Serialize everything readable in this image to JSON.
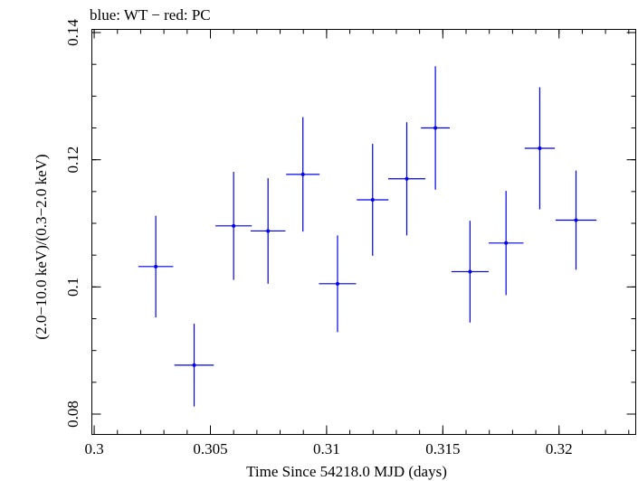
{
  "chart_data": {
    "type": "scatter",
    "title": "blue: WT − red: PC",
    "xlabel": "Time Since 54218.0 MJD (days)",
    "ylabel": "(2.0−10.0 keV)/(0.3−2.0 keV)",
    "xlim": [
      0.2999,
      0.3233
    ],
    "ylim": [
      0.0768,
      0.1405
    ],
    "x_ticks": [
      0.3,
      0.305,
      0.31,
      0.315,
      0.32
    ],
    "x_tick_labels": [
      "0.3",
      "0.305",
      "0.31",
      "0.315",
      "0.32"
    ],
    "y_ticks": [
      0.08,
      0.1,
      0.12,
      0.14
    ],
    "y_tick_labels": [
      "0.08",
      "0.1",
      "0.12",
      "0.14"
    ],
    "x_minor_step": 0.001,
    "y_minor_step": 0.005,
    "grid": false,
    "series": [
      {
        "color": "#0000ee",
        "points": [
          {
            "x": 0.30265,
            "xerr": 0.00075,
            "y": 0.1032,
            "yerr": 0.008
          },
          {
            "x": 0.3043,
            "xerr": 0.00085,
            "y": 0.0877,
            "yerr": 0.0065
          },
          {
            "x": 0.306,
            "xerr": 0.00078,
            "y": 0.1096,
            "yerr": 0.0085
          },
          {
            "x": 0.30748,
            "xerr": 0.00075,
            "y": 0.1088,
            "yerr": 0.0083
          },
          {
            "x": 0.30898,
            "xerr": 0.00072,
            "y": 0.1177,
            "yerr": 0.009
          },
          {
            "x": 0.31047,
            "xerr": 0.0008,
            "y": 0.1005,
            "yerr": 0.0076
          },
          {
            "x": 0.31198,
            "xerr": 0.00068,
            "y": 0.1137,
            "yerr": 0.0088
          },
          {
            "x": 0.31345,
            "xerr": 0.0008,
            "y": 0.117,
            "yerr": 0.0089
          },
          {
            "x": 0.31468,
            "xerr": 0.00062,
            "y": 0.125,
            "yerr": 0.0097
          },
          {
            "x": 0.31617,
            "xerr": 0.0008,
            "y": 0.1024,
            "yerr": 0.008
          },
          {
            "x": 0.31772,
            "xerr": 0.00075,
            "y": 0.1069,
            "yerr": 0.0082
          },
          {
            "x": 0.31917,
            "xerr": 0.00065,
            "y": 0.1218,
            "yerr": 0.0096
          },
          {
            "x": 0.32073,
            "xerr": 0.00088,
            "y": 0.1105,
            "yerr": 0.0078
          }
        ]
      }
    ]
  }
}
